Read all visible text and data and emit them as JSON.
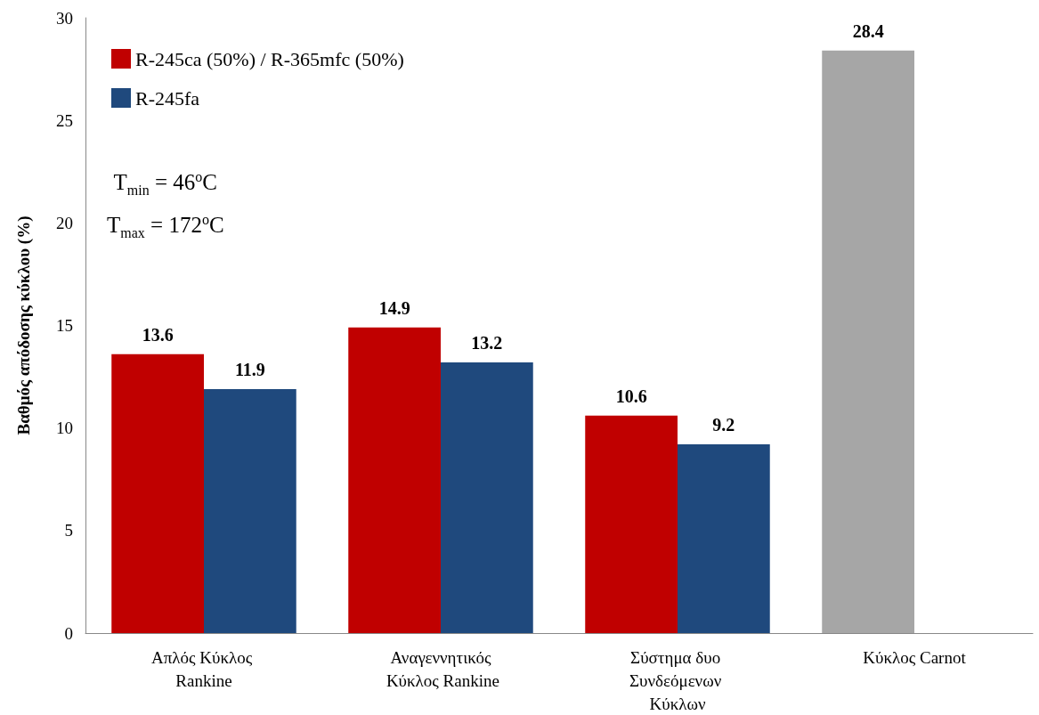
{
  "chart_data": {
    "type": "bar",
    "ylabel": "Βαθμός απόδοσης κύκλου (%)",
    "categories": [
      "Απλός Κύκλος Rankine",
      "Αναγεννητικός Κύκλος Rankine",
      "Σύστημα δυο Συνδεόμενων Κύκλων",
      "Κύκλος Carnot"
    ],
    "series": [
      {
        "name": "R-245ca (50%) / R-365mfc (50%)",
        "color": "#c00000",
        "colors": [
          "#c00000",
          "#c00000",
          "#c00000",
          "#a6a6a6"
        ],
        "values": [
          13.6,
          14.9,
          10.6,
          28.4
        ]
      },
      {
        "name": "R-245fa",
        "color": "#1f497d",
        "values": [
          11.9,
          13.2,
          9.2,
          null
        ]
      }
    ],
    "ylim": [
      0,
      30
    ],
    "yticks": [
      0,
      5,
      10,
      15,
      20,
      25,
      30
    ],
    "grid": false,
    "legend": "top left",
    "data_labels": true,
    "annotations": [
      "T$_{min}$ = 46$^{o}$C",
      "T$_{max}$ = 172$^{o}$C"
    ]
  }
}
